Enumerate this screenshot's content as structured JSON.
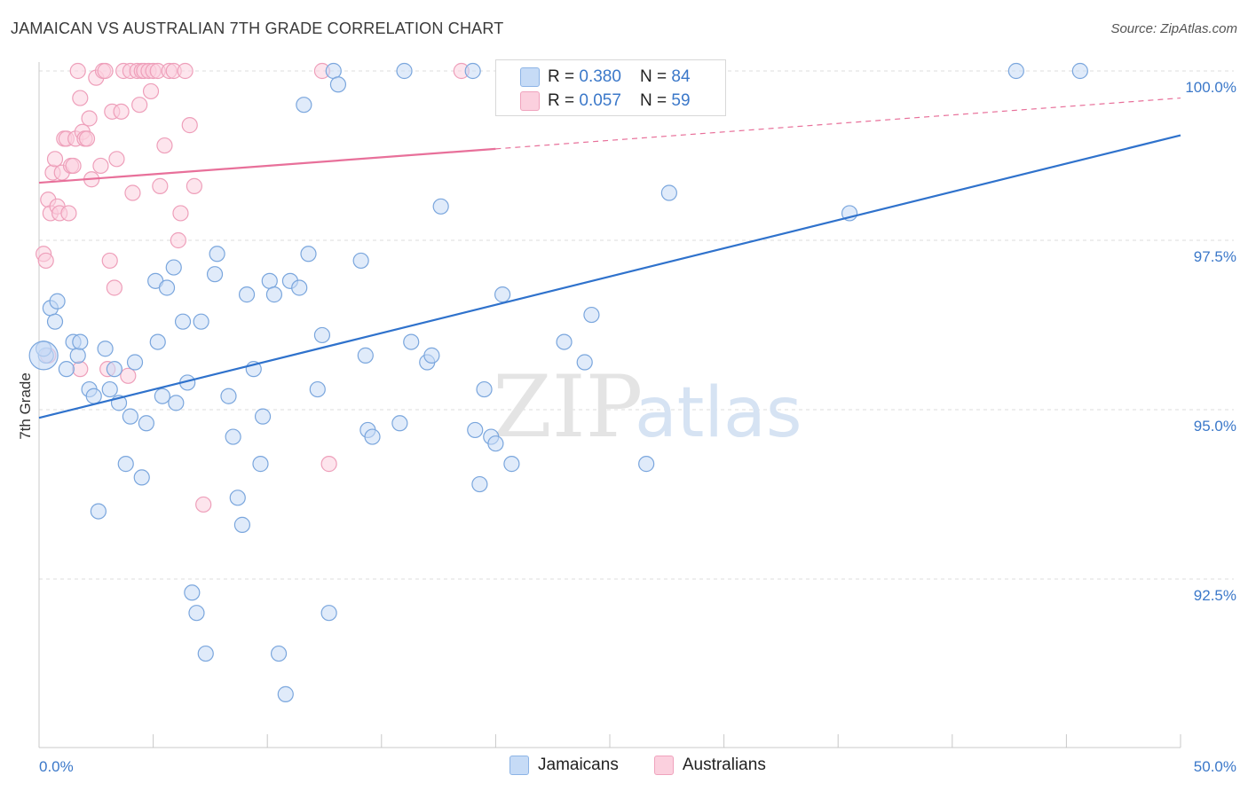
{
  "title": "JAMAICAN VS AUSTRALIAN 7TH GRADE CORRELATION CHART",
  "source": "Source: ZipAtlas.com",
  "watermark": {
    "zip": "ZIP",
    "atlas": "atlas"
  },
  "legend": {
    "jamaicans": {
      "r_label": "R = ",
      "r_value": "0.380",
      "n_label": "N = ",
      "n_value": "84",
      "color": "#a8c8f0"
    },
    "australians": {
      "r_label": "R = ",
      "r_value": "0.057",
      "n_label": "N = ",
      "n_value": "59",
      "color": "#f5b3c8"
    }
  },
  "bottom_legend": [
    "Jamaicans",
    "Australians"
  ],
  "chart_data": {
    "type": "scatter",
    "title": "JAMAICAN VS AUSTRALIAN 7TH GRADE CORRELATION CHART",
    "ylabel": "7th Grade",
    "xlabel": "",
    "xlim": [
      0,
      50
    ],
    "ylim": [
      90.0,
      100.2
    ],
    "x_tick_labels": [
      {
        "value": 0,
        "label": "0.0%"
      },
      {
        "value": 50,
        "label": "50.0%"
      }
    ],
    "y_tick_labels": [
      {
        "value": 92.5,
        "label": "92.5%"
      },
      {
        "value": 95.0,
        "label": "95.0%"
      },
      {
        "value": 97.5,
        "label": "97.5%"
      },
      {
        "value": 100.0,
        "label": "100.0%"
      }
    ],
    "grid": true,
    "colors": {
      "jamaicans": "#a8c8f0",
      "jamaicans_line": "#2f72cc",
      "australians": "#f5b3c8",
      "australians_line": "#e8709a"
    },
    "trendlines": {
      "jamaicans": {
        "x0": 0,
        "y0": 94.88,
        "x1": 50,
        "y1": 99.05
      },
      "australians": {
        "x0": 0,
        "y0": 98.35,
        "x1": 20,
        "y1": 98.85,
        "dash_to_x": 50,
        "dash_to_y": 99.6
      }
    },
    "series": [
      {
        "name": "Jamaicans",
        "points": [
          [
            0.3,
            95.8
          ],
          [
            0.5,
            96.5
          ],
          [
            0.8,
            96.6
          ],
          [
            0.7,
            96.3
          ],
          [
            1.2,
            95.6
          ],
          [
            1.5,
            96.0
          ],
          [
            1.7,
            95.8
          ],
          [
            1.8,
            96.0
          ],
          [
            2.2,
            95.3
          ],
          [
            2.4,
            95.2
          ],
          [
            2.6,
            93.5
          ],
          [
            2.9,
            95.9
          ],
          [
            3.1,
            95.3
          ],
          [
            3.3,
            95.6
          ],
          [
            3.5,
            95.1
          ],
          [
            3.8,
            94.2
          ],
          [
            4.0,
            94.9
          ],
          [
            4.2,
            95.7
          ],
          [
            4.5,
            94.0
          ],
          [
            4.7,
            94.8
          ],
          [
            5.1,
            96.9
          ],
          [
            5.2,
            96.0
          ],
          [
            5.4,
            95.2
          ],
          [
            5.6,
            96.8
          ],
          [
            5.9,
            97.1
          ],
          [
            6.0,
            95.1
          ],
          [
            6.3,
            96.3
          ],
          [
            6.5,
            95.4
          ],
          [
            6.7,
            92.3
          ],
          [
            6.9,
            92.0
          ],
          [
            7.1,
            96.3
          ],
          [
            7.3,
            91.4
          ],
          [
            7.7,
            97.0
          ],
          [
            7.8,
            97.3
          ],
          [
            8.3,
            95.2
          ],
          [
            8.5,
            94.6
          ],
          [
            8.7,
            93.7
          ],
          [
            8.9,
            93.3
          ],
          [
            9.1,
            96.7
          ],
          [
            9.4,
            95.6
          ],
          [
            9.7,
            94.2
          ],
          [
            9.8,
            94.9
          ],
          [
            10.1,
            96.9
          ],
          [
            10.3,
            96.7
          ],
          [
            10.5,
            91.4
          ],
          [
            10.8,
            90.8
          ],
          [
            11.0,
            96.9
          ],
          [
            11.4,
            96.8
          ],
          [
            11.6,
            99.5
          ],
          [
            11.8,
            97.3
          ],
          [
            12.2,
            95.3
          ],
          [
            12.4,
            96.1
          ],
          [
            12.7,
            92.0
          ],
          [
            12.9,
            100.0
          ],
          [
            13.1,
            99.8
          ],
          [
            14.1,
            97.2
          ],
          [
            14.3,
            95.8
          ],
          [
            14.4,
            94.7
          ],
          [
            14.6,
            94.6
          ],
          [
            15.8,
            94.8
          ],
          [
            16.0,
            100.0
          ],
          [
            16.3,
            96.0
          ],
          [
            17.0,
            95.7
          ],
          [
            17.2,
            95.8
          ],
          [
            17.6,
            98.0
          ],
          [
            19.0,
            100.0
          ],
          [
            19.1,
            94.7
          ],
          [
            19.3,
            93.9
          ],
          [
            19.5,
            95.3
          ],
          [
            19.8,
            94.6
          ],
          [
            20.0,
            94.5
          ],
          [
            20.3,
            96.7
          ],
          [
            20.7,
            94.2
          ],
          [
            23.0,
            96.0
          ],
          [
            23.9,
            95.7
          ],
          [
            24.2,
            96.4
          ],
          [
            26.6,
            94.2
          ],
          [
            26.7,
            100.0
          ],
          [
            27.6,
            98.2
          ],
          [
            28.4,
            100.0
          ],
          [
            35.5,
            97.9
          ],
          [
            42.8,
            100.0
          ],
          [
            45.6,
            100.0
          ],
          [
            0.2,
            95.9
          ]
        ]
      },
      {
        "name": "Australians",
        "points": [
          [
            0.2,
            97.3
          ],
          [
            0.3,
            97.2
          ],
          [
            0.4,
            98.1
          ],
          [
            0.5,
            97.9
          ],
          [
            0.6,
            98.5
          ],
          [
            0.7,
            98.7
          ],
          [
            0.8,
            98.0
          ],
          [
            0.9,
            97.9
          ],
          [
            1.0,
            98.5
          ],
          [
            1.1,
            99.0
          ],
          [
            1.2,
            99.0
          ],
          [
            1.3,
            97.9
          ],
          [
            1.4,
            98.6
          ],
          [
            1.5,
            98.6
          ],
          [
            1.6,
            99.0
          ],
          [
            1.7,
            100.0
          ],
          [
            1.8,
            99.6
          ],
          [
            1.9,
            99.1
          ],
          [
            2.0,
            99.0
          ],
          [
            2.1,
            99.0
          ],
          [
            2.2,
            99.3
          ],
          [
            2.3,
            98.4
          ],
          [
            2.5,
            99.9
          ],
          [
            2.7,
            98.6
          ],
          [
            2.8,
            100.0
          ],
          [
            2.9,
            100.0
          ],
          [
            3.0,
            95.6
          ],
          [
            3.1,
            97.2
          ],
          [
            3.2,
            99.4
          ],
          [
            3.3,
            96.8
          ],
          [
            3.4,
            98.7
          ],
          [
            3.6,
            99.4
          ],
          [
            3.7,
            100.0
          ],
          [
            3.9,
            95.5
          ],
          [
            4.0,
            100.0
          ],
          [
            4.1,
            98.2
          ],
          [
            4.3,
            100.0
          ],
          [
            4.4,
            99.5
          ],
          [
            4.5,
            100.0
          ],
          [
            4.6,
            100.0
          ],
          [
            4.8,
            100.0
          ],
          [
            4.9,
            99.7
          ],
          [
            5.0,
            100.0
          ],
          [
            5.2,
            100.0
          ],
          [
            5.3,
            98.3
          ],
          [
            5.5,
            98.9
          ],
          [
            5.7,
            100.0
          ],
          [
            5.9,
            100.0
          ],
          [
            6.1,
            97.5
          ],
          [
            6.2,
            97.9
          ],
          [
            6.4,
            100.0
          ],
          [
            6.6,
            99.2
          ],
          [
            6.8,
            98.3
          ],
          [
            7.2,
            93.6
          ],
          [
            12.4,
            100.0
          ],
          [
            12.7,
            94.2
          ],
          [
            18.5,
            100.0
          ],
          [
            0.4,
            95.8
          ],
          [
            1.8,
            95.6
          ]
        ]
      }
    ]
  }
}
